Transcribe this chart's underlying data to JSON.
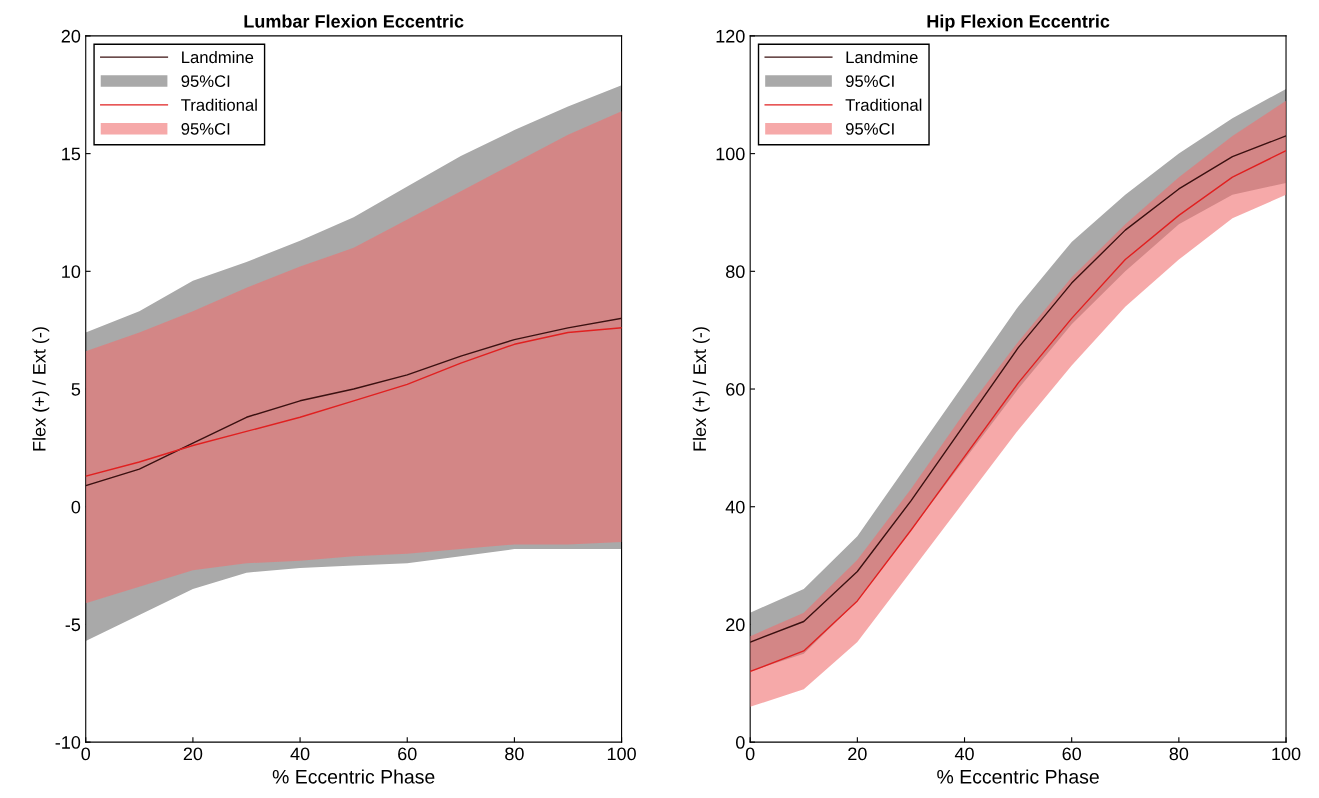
{
  "chart_data": [
    {
      "type": "line",
      "title": "Lumbar Flexion Eccentric",
      "xlabel": "% Eccentric Phase",
      "ylabel": "Flex (+) / Ext (-)",
      "x": [
        0,
        10,
        20,
        30,
        40,
        50,
        60,
        70,
        80,
        90,
        100
      ],
      "xlim": [
        0,
        100
      ],
      "xticks": [
        0,
        20,
        40,
        60,
        80,
        100
      ],
      "ylim": [
        -10,
        20
      ],
      "yticks": [
        -10,
        -5,
        0,
        5,
        10,
        15,
        20
      ],
      "grid": false,
      "legend": "top left",
      "series": [
        {
          "name": "Landmine",
          "color": "#3a1010",
          "values": [
            0.9,
            1.6,
            2.7,
            3.8,
            4.5,
            5.0,
            5.6,
            6.4,
            7.1,
            7.6,
            8.0
          ]
        },
        {
          "name": "95%CI",
          "type": "area",
          "color": "#a9a9a9",
          "values": [
            null,
            null,
            null,
            null,
            null,
            null,
            null,
            null,
            null,
            null,
            null
          ],
          "lower": [
            -5.7,
            -4.6,
            -3.5,
            -2.8,
            -2.6,
            -2.5,
            -2.4,
            -2.1,
            -1.8,
            -1.8,
            -1.8
          ],
          "upper": [
            7.4,
            8.3,
            9.6,
            10.4,
            11.3,
            12.3,
            13.6,
            14.9,
            16.0,
            17.0,
            17.9
          ]
        },
        {
          "name": "Traditional",
          "color": "#e02020",
          "values": [
            1.3,
            1.9,
            2.6,
            3.2,
            3.8,
            4.5,
            5.2,
            6.1,
            6.9,
            7.4,
            7.6
          ]
        },
        {
          "name": "95%CI",
          "type": "area",
          "color": "#f07070",
          "values": [
            null,
            null,
            null,
            null,
            null,
            null,
            null,
            null,
            null,
            null,
            null
          ],
          "lower": [
            -4.1,
            -3.4,
            -2.7,
            -2.4,
            -2.3,
            -2.1,
            -2.0,
            -1.8,
            -1.6,
            -1.6,
            -1.5
          ],
          "upper": [
            6.6,
            7.4,
            8.3,
            9.3,
            10.2,
            11.0,
            12.2,
            13.4,
            14.6,
            15.8,
            16.8
          ]
        }
      ]
    },
    {
      "type": "line",
      "title": "Hip Flexion Eccentric",
      "xlabel": "% Eccentric Phase",
      "ylabel": "Flex (+) / Ext (-)",
      "x": [
        0,
        10,
        20,
        30,
        40,
        50,
        60,
        70,
        80,
        90,
        100
      ],
      "xlim": [
        0,
        100
      ],
      "xticks": [
        0,
        20,
        40,
        60,
        80,
        100
      ],
      "ylim": [
        0,
        120
      ],
      "yticks": [
        0,
        20,
        40,
        60,
        80,
        100,
        120
      ],
      "grid": false,
      "legend": "top left",
      "series": [
        {
          "name": "Landmine",
          "color": "#3a1010",
          "values": [
            17,
            20.5,
            29,
            41,
            54,
            67,
            78,
            87,
            94,
            99.5,
            103
          ]
        },
        {
          "name": "95%CI",
          "type": "area",
          "color": "#a9a9a9",
          "values": [
            null,
            null,
            null,
            null,
            null,
            null,
            null,
            null,
            null,
            null,
            null
          ],
          "lower": [
            12,
            15,
            24,
            36,
            48,
            60,
            71,
            80,
            88,
            93,
            95
          ],
          "upper": [
            22,
            26,
            35,
            48,
            61,
            74,
            85,
            93,
            100,
            106,
            111
          ]
        },
        {
          "name": "Traditional",
          "color": "#e02020",
          "values": [
            12,
            15.5,
            24,
            36,
            48.5,
            61,
            72,
            82,
            89.5,
            96,
            100.5
          ]
        },
        {
          "name": "95%CI",
          "type": "area",
          "color": "#f07070",
          "values": [
            null,
            null,
            null,
            null,
            null,
            null,
            null,
            null,
            null,
            null,
            null
          ],
          "lower": [
            6,
            9,
            17,
            29,
            41,
            53,
            64,
            74,
            82,
            89,
            93
          ],
          "upper": [
            18,
            22,
            31,
            43,
            56,
            68,
            79,
            88,
            96,
            103,
            109
          ]
        }
      ]
    }
  ]
}
